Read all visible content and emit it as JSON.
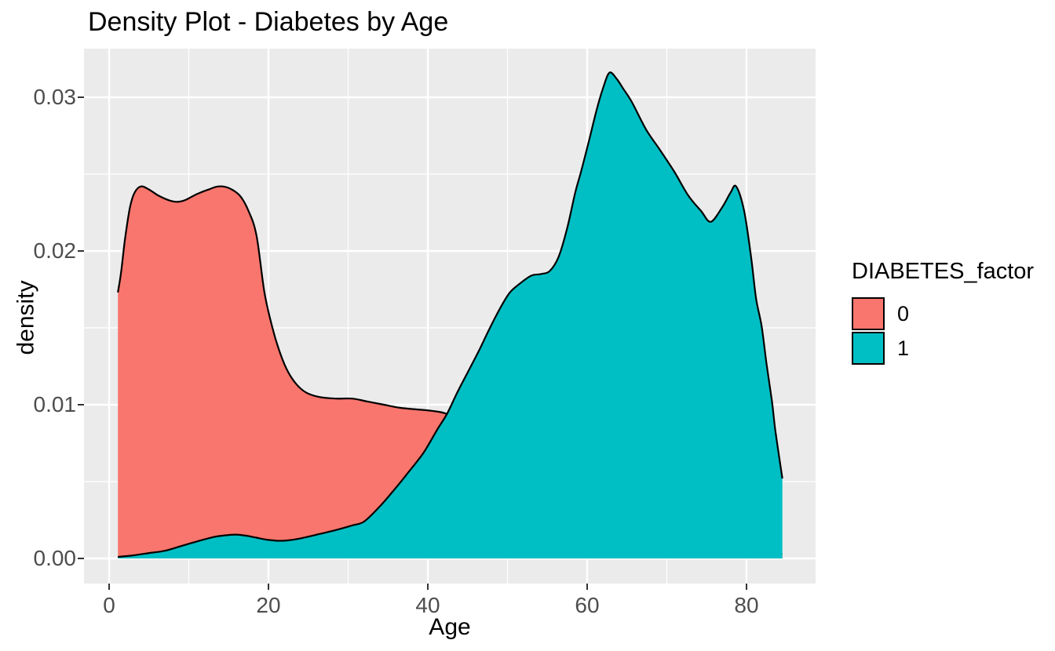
{
  "title": "Density Plot - Diabetes by Age",
  "axes": {
    "x": {
      "label": "Age",
      "tick_labels": [
        "0",
        "20",
        "40",
        "60",
        "80"
      ],
      "tick_values": [
        0,
        20,
        40,
        60,
        80
      ],
      "minor_values": [
        10,
        30,
        50,
        70
      ],
      "domain": [
        -3.153,
        88.67
      ]
    },
    "y": {
      "label": "density",
      "tick_labels": [
        "0.00",
        "0.01",
        "0.02",
        "0.03"
      ],
      "tick_values": [
        0,
        0.01,
        0.02,
        0.03
      ],
      "minor_values": [
        0.005,
        0.015,
        0.025
      ],
      "domain": [
        -0.001633,
        0.033163
      ]
    }
  },
  "legend": {
    "title": "DIABETES_factor",
    "entries": [
      {
        "label": "0",
        "color": "#F8766D"
      },
      {
        "label": "1",
        "color": "#00BFC4"
      }
    ]
  },
  "colors": {
    "panel_bg": "#EBEBEB",
    "grid_major": "#FFFFFF",
    "grid_minor": "#FFFFFF",
    "curve_outline": "#000000",
    "axis_text": "#4D4D4D",
    "tick_mark": "#333333",
    "fill_0": "#F8766D",
    "fill_1": "#00BFC4"
  },
  "chart_data": {
    "type": "area",
    "subtype": "density",
    "title": "Density Plot - Diabetes by Age",
    "xlabel": "Age",
    "ylabel": "density",
    "xlim": [
      -3.153,
      88.67
    ],
    "ylim": [
      -0.001633,
      0.033163
    ],
    "grid": "on",
    "legend_position": "right",
    "legend_title": "DIABETES_factor",
    "series": [
      {
        "name": "0",
        "color": "#F8766D",
        "points": [
          [
            1.1,
            0.0173
          ],
          [
            1.5,
            0.0186
          ],
          [
            2.0,
            0.0208
          ],
          [
            2.6,
            0.0228
          ],
          [
            3.2,
            0.0238
          ],
          [
            4.0,
            0.0242
          ],
          [
            5.0,
            0.024
          ],
          [
            6.2,
            0.0236
          ],
          [
            7.5,
            0.0233
          ],
          [
            8.5,
            0.0232
          ],
          [
            9.5,
            0.0233
          ],
          [
            11.0,
            0.0237
          ],
          [
            12.5,
            0.024
          ],
          [
            13.7,
            0.0242
          ],
          [
            15.0,
            0.0241
          ],
          [
            16.4,
            0.0236
          ],
          [
            17.5,
            0.0226
          ],
          [
            18.5,
            0.021
          ],
          [
            19.5,
            0.0173
          ],
          [
            20.5,
            0.015
          ],
          [
            21.3,
            0.0136
          ],
          [
            22.3,
            0.0123
          ],
          [
            23.4,
            0.0114
          ],
          [
            24.7,
            0.0108
          ],
          [
            26.4,
            0.0105
          ],
          [
            28.5,
            0.0104
          ],
          [
            30.5,
            0.0104
          ],
          [
            32.5,
            0.0102
          ],
          [
            34.5,
            0.01
          ],
          [
            36.5,
            0.0098
          ],
          [
            38.5,
            0.0097
          ],
          [
            40.5,
            0.0096
          ],
          [
            42.4,
            0.0094
          ],
          [
            45.0,
            0.0087
          ],
          [
            47.5,
            0.0079
          ],
          [
            50.0,
            0.007
          ],
          [
            53.0,
            0.0058
          ],
          [
            56.0,
            0.0047
          ],
          [
            60.0,
            0.0034
          ],
          [
            64.0,
            0.0025
          ],
          [
            68.0,
            0.0018
          ],
          [
            72.0,
            0.0013
          ],
          [
            76.0,
            0.0009
          ],
          [
            80.0,
            0.0006
          ],
          [
            84.5,
            0.0003
          ]
        ]
      },
      {
        "name": "1",
        "color": "#00BFC4",
        "points": [
          [
            1.1,
            0.0001
          ],
          [
            3.0,
            0.0002
          ],
          [
            5.0,
            0.00035
          ],
          [
            7.0,
            0.0005
          ],
          [
            9.0,
            0.0008
          ],
          [
            11.0,
            0.0011
          ],
          [
            13.0,
            0.00138
          ],
          [
            14.5,
            0.0015
          ],
          [
            15.9,
            0.00155
          ],
          [
            17.2,
            0.00148
          ],
          [
            18.5,
            0.00135
          ],
          [
            19.8,
            0.00122
          ],
          [
            21.3,
            0.00115
          ],
          [
            22.5,
            0.00118
          ],
          [
            24.0,
            0.0013
          ],
          [
            26.5,
            0.0016
          ],
          [
            28.5,
            0.00185
          ],
          [
            30.5,
            0.00215
          ],
          [
            32.0,
            0.0024
          ],
          [
            34.0,
            0.0034
          ],
          [
            36.0,
            0.0046
          ],
          [
            37.7,
            0.0057
          ],
          [
            39.5,
            0.0069
          ],
          [
            41.2,
            0.0084
          ],
          [
            42.4,
            0.0094
          ],
          [
            43.7,
            0.0108
          ],
          [
            45.1,
            0.0122
          ],
          [
            46.4,
            0.0135
          ],
          [
            47.7,
            0.0149
          ],
          [
            49.1,
            0.0163
          ],
          [
            50.3,
            0.0173
          ],
          [
            51.6,
            0.0179
          ],
          [
            53.0,
            0.0184
          ],
          [
            54.2,
            0.0185
          ],
          [
            55.3,
            0.0187
          ],
          [
            56.4,
            0.0196
          ],
          [
            57.5,
            0.0215
          ],
          [
            58.5,
            0.0238
          ],
          [
            59.2,
            0.0251
          ],
          [
            60.2,
            0.0271
          ],
          [
            61.2,
            0.0292
          ],
          [
            62.0,
            0.0306
          ],
          [
            62.8,
            0.0316
          ],
          [
            63.7,
            0.0312
          ],
          [
            64.6,
            0.0305
          ],
          [
            65.6,
            0.0297
          ],
          [
            67.4,
            0.0279
          ],
          [
            69.1,
            0.0266
          ],
          [
            71.0,
            0.0251
          ],
          [
            72.7,
            0.0236
          ],
          [
            74.3,
            0.0226
          ],
          [
            75.5,
            0.0219
          ],
          [
            76.9,
            0.0228
          ],
          [
            78.0,
            0.0238
          ],
          [
            78.7,
            0.0242
          ],
          [
            79.7,
            0.0226
          ],
          [
            80.6,
            0.0195
          ],
          [
            81.2,
            0.0169
          ],
          [
            81.9,
            0.0151
          ],
          [
            82.5,
            0.0127
          ],
          [
            83.2,
            0.0102
          ],
          [
            83.6,
            0.0084
          ],
          [
            84.1,
            0.0066
          ],
          [
            84.5,
            0.0052
          ]
        ]
      }
    ]
  }
}
